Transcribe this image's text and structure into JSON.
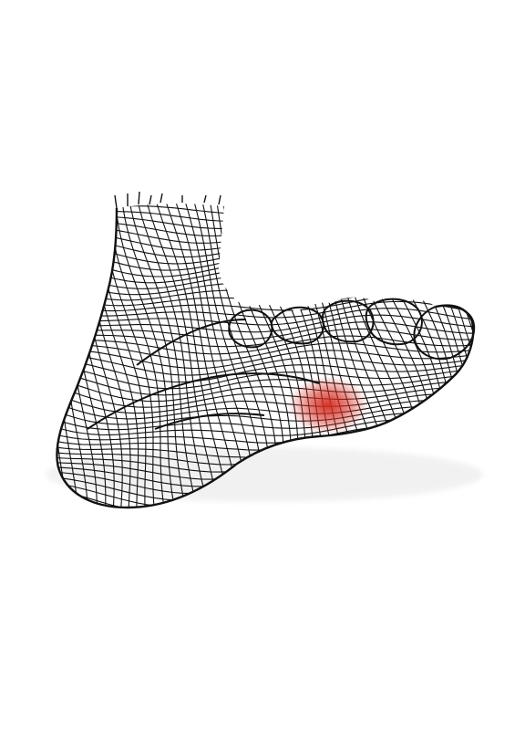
{
  "illustration": {
    "subject": "wireframe-foot",
    "highlight": {
      "region": "ball-of-foot",
      "color": "#d42a1f"
    },
    "line_color": "#111111",
    "background": "#ffffff"
  }
}
